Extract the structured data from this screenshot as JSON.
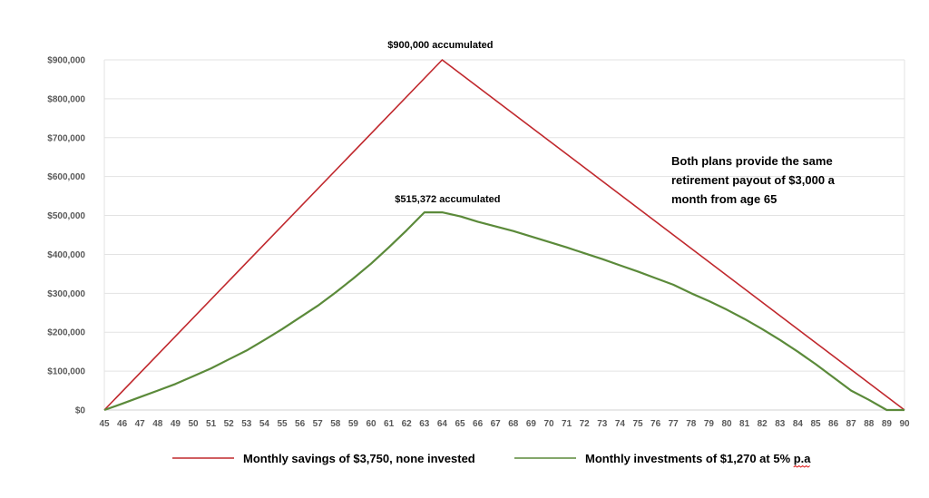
{
  "chart_data": {
    "type": "line",
    "x": [
      45,
      46,
      47,
      48,
      49,
      50,
      51,
      52,
      53,
      54,
      55,
      56,
      57,
      58,
      59,
      60,
      61,
      62,
      63,
      64,
      65,
      66,
      67,
      68,
      69,
      70,
      71,
      72,
      73,
      74,
      75,
      76,
      77,
      78,
      79,
      80,
      81,
      82,
      83,
      84,
      85,
      86,
      87,
      88,
      89,
      90
    ],
    "x_tick_labels": [
      "45",
      "46",
      "47",
      "48",
      "49",
      "50",
      "51",
      "52",
      "53",
      "54",
      "55",
      "56",
      "57",
      "58",
      "59",
      "60",
      "61",
      "62",
      "63",
      "64",
      "65",
      "66",
      "67",
      "68",
      "69",
      "70",
      "71",
      "72",
      "73",
      "74",
      "75",
      "76",
      "77",
      "78",
      "79",
      "80",
      "81",
      "82",
      "83",
      "84",
      "85",
      "86",
      "87",
      "88",
      "89",
      "90"
    ],
    "y_tick_labels": [
      "$0",
      "$100,000",
      "$200,000",
      "$300,000",
      "$400,000",
      "$500,000",
      "$600,000",
      "$700,000",
      "$800,000",
      "$900,000"
    ],
    "ylim": [
      0,
      900000
    ],
    "grid": true,
    "legend_position": "bottom",
    "series": [
      {
        "name": "Monthly savings of $3,750, none invested",
        "color": "#c0282d",
        "points": [
          [
            45,
            0
          ],
          [
            64,
            900000
          ],
          [
            90,
            0
          ]
        ]
      },
      {
        "name": "Monthly investments of $1,270 at 5% p.a",
        "color": "#5b8a3a",
        "points": [
          [
            45,
            0
          ],
          [
            46,
            16000
          ],
          [
            47,
            33000
          ],
          [
            48,
            50000
          ],
          [
            49,
            67000
          ],
          [
            50,
            87000
          ],
          [
            51,
            107000
          ],
          [
            52,
            130000
          ],
          [
            53,
            153000
          ],
          [
            54,
            180000
          ],
          [
            55,
            208000
          ],
          [
            56,
            238000
          ],
          [
            57,
            268000
          ],
          [
            58,
            302000
          ],
          [
            59,
            338000
          ],
          [
            60,
            376000
          ],
          [
            61,
            418000
          ],
          [
            62,
            462000
          ],
          [
            63,
            508000
          ],
          [
            64,
            508000
          ],
          [
            65,
            498000
          ],
          [
            66,
            484000
          ],
          [
            67,
            472000
          ],
          [
            68,
            460000
          ],
          [
            69,
            446000
          ],
          [
            70,
            432000
          ],
          [
            71,
            418000
          ],
          [
            72,
            403000
          ],
          [
            73,
            388000
          ],
          [
            74,
            372000
          ],
          [
            75,
            356000
          ],
          [
            76,
            339000
          ],
          [
            77,
            322000
          ],
          [
            78,
            300000
          ],
          [
            79,
            280000
          ],
          [
            80,
            258000
          ],
          [
            81,
            234000
          ],
          [
            82,
            208000
          ],
          [
            83,
            180000
          ],
          [
            84,
            150000
          ],
          [
            85,
            118000
          ],
          [
            86,
            84000
          ],
          [
            87,
            50000
          ],
          [
            88,
            26000
          ],
          [
            89,
            0
          ],
          [
            90,
            0
          ]
        ]
      }
    ],
    "annotations": [
      {
        "text": "$900,000 accumulated",
        "x": 64,
        "y": 900000
      },
      {
        "text": "$515,372 accumulated",
        "x": 64,
        "y": 515372
      }
    ],
    "note_lines": [
      "Both plans provide the same",
      "retirement payout of $3,000 a",
      "month from age 65"
    ]
  }
}
